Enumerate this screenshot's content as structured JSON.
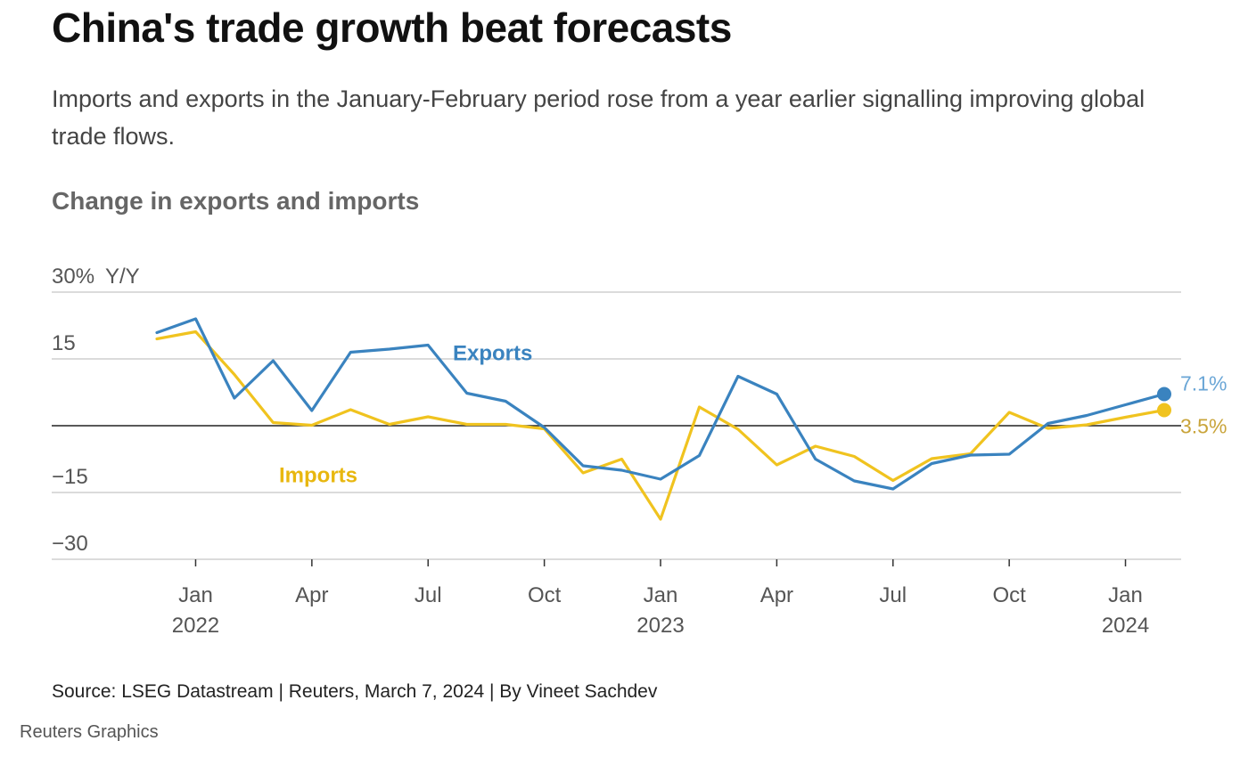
{
  "header": {
    "title": "China's trade growth beat forecasts",
    "subtitle": "Imports and exports in the January-February period rose from a year earlier signalling improving global trade flows."
  },
  "footer": {
    "source": "Source: LSEG Datastream | Reuters, March 7, 2024 | By Vineet Sachdev",
    "credit": "Reuters Graphics"
  },
  "chart_data": {
    "type": "line",
    "title": "Change in exports and imports",
    "y_unit_label": "Y/Y",
    "ylim": [
      -30,
      30
    ],
    "y_ticks": [
      {
        "value": 30,
        "label": "30%"
      },
      {
        "value": 15,
        "label": "15"
      },
      {
        "value": -15,
        "label": "−15"
      },
      {
        "value": -30,
        "label": "−30"
      }
    ],
    "x": [
      "2021-12",
      "2022-01",
      "2022-02",
      "2022-03",
      "2022-04",
      "2022-05",
      "2022-06",
      "2022-07",
      "2022-08",
      "2022-09",
      "2022-10",
      "2022-11",
      "2022-12",
      "2023-01",
      "2023-02",
      "2023-03",
      "2023-04",
      "2023-05",
      "2023-06",
      "2023-07",
      "2023-08",
      "2023-09",
      "2023-10",
      "2023-11",
      "2023-12",
      "2024-01",
      "2024-02"
    ],
    "x_ticks": [
      {
        "x": "2022-01",
        "label": "Jan",
        "year": "2022"
      },
      {
        "x": "2022-04",
        "label": "Apr",
        "year": ""
      },
      {
        "x": "2022-07",
        "label": "Jul",
        "year": ""
      },
      {
        "x": "2022-10",
        "label": "Oct",
        "year": ""
      },
      {
        "x": "2023-01",
        "label": "Jan",
        "year": "2023"
      },
      {
        "x": "2023-04",
        "label": "Apr",
        "year": ""
      },
      {
        "x": "2023-07",
        "label": "Jul",
        "year": ""
      },
      {
        "x": "2023-10",
        "label": "Oct",
        "year": ""
      },
      {
        "x": "2024-01",
        "label": "Jan",
        "year": "2024"
      }
    ],
    "series": [
      {
        "name": "Exports",
        "color": "#3a83bf",
        "end_label": "7.1%",
        "values": [
          20.9,
          24.0,
          6.2,
          14.6,
          3.4,
          16.5,
          17.2,
          18.1,
          7.3,
          5.5,
          -0.4,
          -9.0,
          -10.0,
          -12.0,
          -6.7,
          11.1,
          7.1,
          -7.5,
          -12.4,
          -14.2,
          -8.5,
          -6.6,
          -6.4,
          0.5,
          2.3,
          4.7,
          7.1
        ]
      },
      {
        "name": "Imports",
        "color": "#f0c31f",
        "end_label": "3.5%",
        "values": [
          19.5,
          21.1,
          11.5,
          0.7,
          0.1,
          3.6,
          0.3,
          2.0,
          0.3,
          0.3,
          -0.7,
          -10.6,
          -7.5,
          -21.0,
          4.2,
          -0.8,
          -8.8,
          -4.6,
          -6.9,
          -12.3,
          -7.4,
          -6.3,
          3.0,
          -0.6,
          0.2,
          1.9,
          3.5
        ]
      }
    ]
  }
}
